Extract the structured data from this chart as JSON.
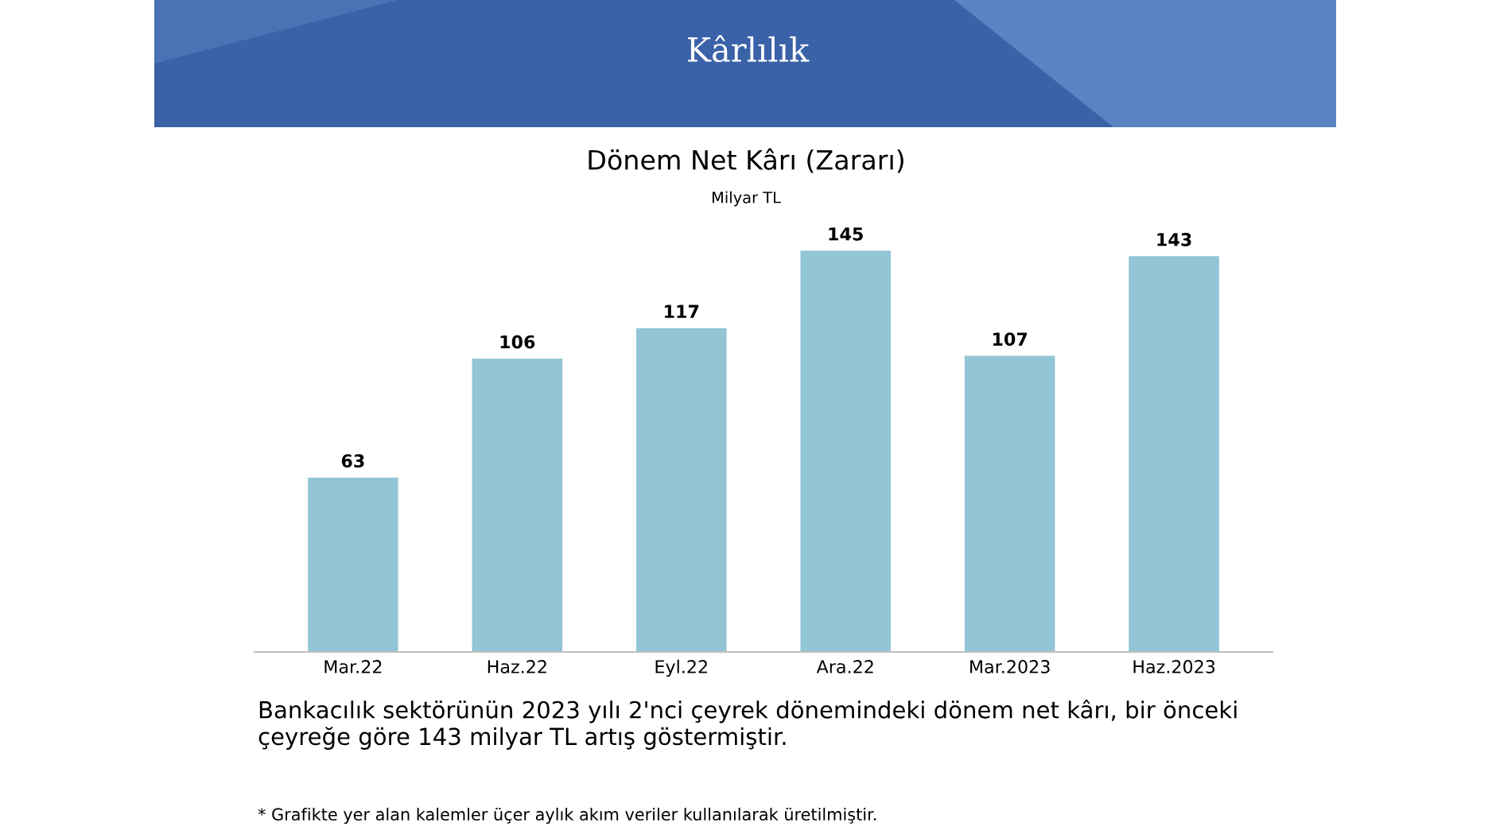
{
  "chart_data": {
    "type": "bar",
    "title": "Dönem Net Kârı (Zararı)",
    "subtitle": "Milyar TL",
    "categories": [
      "Mar.22",
      "Haz.22",
      "Eyl.22",
      "Ara.22",
      "Mar.2023",
      "Haz.2023"
    ],
    "values": [
      63,
      106,
      117,
      145,
      107,
      143
    ],
    "color": "#92c5d6",
    "data_labels": true,
    "grid": false,
    "legend": false,
    "annotations": [
      "Kârlılık",
      "Bankacılık sektörünün 2023 yılı 2'nci çeyrek dönemindeki dönem net kârı, bir önceki çeyreğe göre 143 milyar TL artış göstermiştir.",
      "* Grafikte yer alan kalemler üçer aylık akım veriler kullanılarak üretilmiştir."
    ]
  }
}
